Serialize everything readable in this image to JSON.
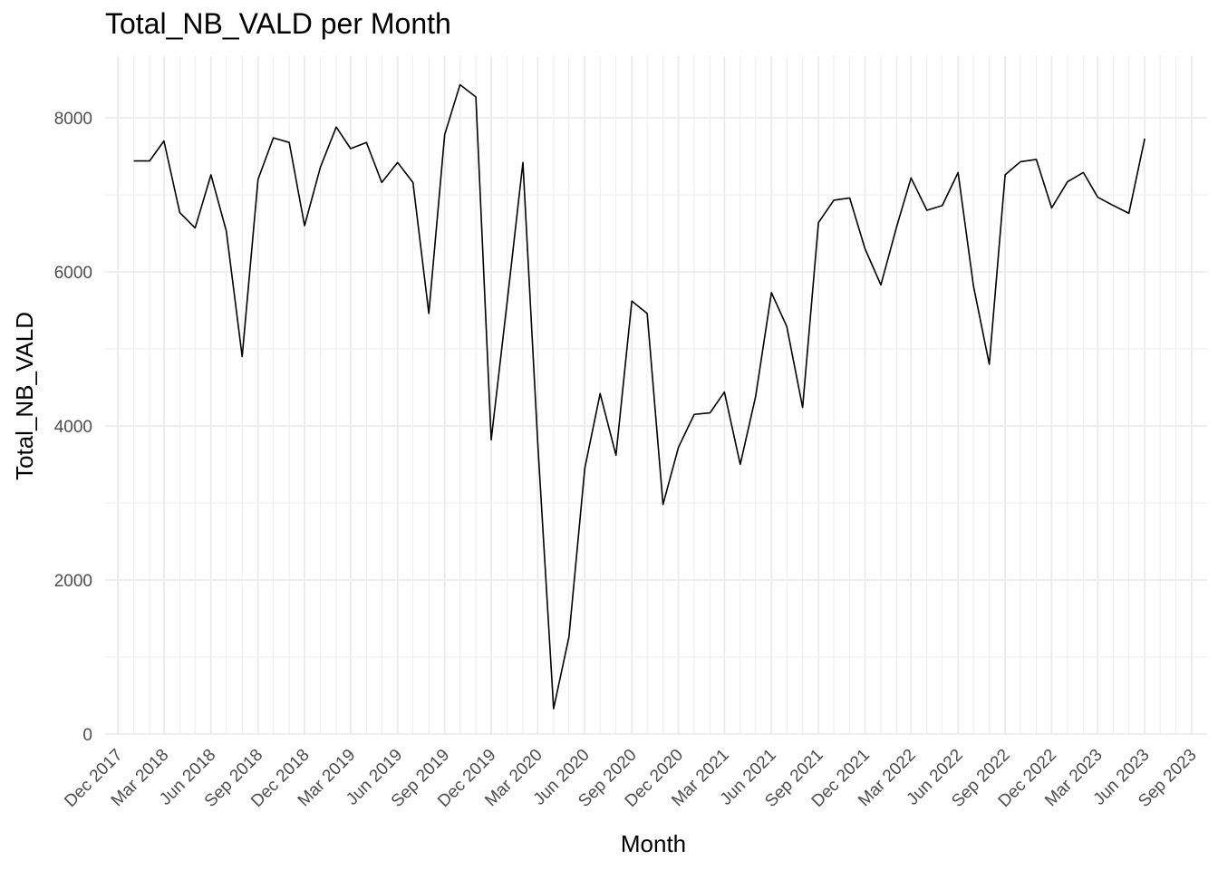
{
  "chart_data": {
    "type": "line",
    "title": "Total_NB_VALD per Month",
    "xlabel": "Month",
    "ylabel": "Total_NB_VALD",
    "ylim": [
      0,
      8800
    ],
    "xlim": [
      "2017-11-06",
      "2023-10-01"
    ],
    "y_ticks": [
      0,
      2000,
      4000,
      6000,
      8000
    ],
    "x_ticks": [
      "2017-12-01",
      "2018-03-01",
      "2018-06-01",
      "2018-09-01",
      "2018-12-01",
      "2019-03-01",
      "2019-06-01",
      "2019-09-01",
      "2019-12-01",
      "2020-03-01",
      "2020-06-01",
      "2020-09-01",
      "2020-12-01",
      "2021-03-01",
      "2021-06-01",
      "2021-09-01",
      "2021-12-01",
      "2022-03-01",
      "2022-06-01",
      "2022-09-01",
      "2022-12-01",
      "2023-03-01",
      "2023-06-01",
      "2023-09-01"
    ],
    "x_tick_labels": [
      "Dec 2017",
      "Mar 2018",
      "Jun 2018",
      "Sep 2018",
      "Dec 2018",
      "Mar 2019",
      "Jun 2019",
      "Sep 2019",
      "Dec 2019",
      "Mar 2020",
      "Jun 2020",
      "Sep 2020",
      "Dec 2020",
      "Mar 2021",
      "Jun 2021",
      "Sep 2021",
      "Dec 2021",
      "Mar 2022",
      "Jun 2022",
      "Sep 2022",
      "Dec 2022",
      "Mar 2023",
      "Jun 2023",
      "Sep 2023"
    ],
    "grid": true,
    "line_color": "#000000",
    "grid_color": "#ebebeb",
    "x": [
      "2018-01-01",
      "2018-02-01",
      "2018-03-01",
      "2018-04-01",
      "2018-05-01",
      "2018-06-01",
      "2018-07-01",
      "2018-08-01",
      "2018-09-01",
      "2018-10-01",
      "2018-11-01",
      "2018-12-01",
      "2019-01-01",
      "2019-02-01",
      "2019-03-01",
      "2019-04-01",
      "2019-05-01",
      "2019-06-01",
      "2019-07-01",
      "2019-08-01",
      "2019-09-01",
      "2019-10-01",
      "2019-11-01",
      "2019-12-01",
      "2020-01-01",
      "2020-02-01",
      "2020-03-01",
      "2020-04-01",
      "2020-05-01",
      "2020-06-01",
      "2020-07-01",
      "2020-08-01",
      "2020-09-01",
      "2020-10-01",
      "2020-11-01",
      "2020-12-01",
      "2021-01-01",
      "2021-02-01",
      "2021-03-01",
      "2021-04-01",
      "2021-05-01",
      "2021-06-01",
      "2021-07-01",
      "2021-08-01",
      "2021-09-01",
      "2021-10-01",
      "2021-11-01",
      "2021-12-01",
      "2022-01-01",
      "2022-02-01",
      "2022-03-01",
      "2022-04-01",
      "2022-05-01",
      "2022-06-01",
      "2022-07-01",
      "2022-08-01",
      "2022-09-01",
      "2022-10-01",
      "2022-11-01",
      "2022-12-01",
      "2023-01-01",
      "2023-02-01",
      "2023-03-01",
      "2023-04-01",
      "2023-05-01",
      "2023-06-01"
    ],
    "series": [
      {
        "values": [
          7440,
          7440,
          7700,
          6770,
          6570,
          7260,
          6530,
          4900,
          7200,
          7740,
          7680,
          6600,
          7360,
          7880,
          7600,
          7680,
          7160,
          7420,
          7160,
          5460,
          7780,
          8430,
          8270,
          3820,
          5600,
          7420,
          3780,
          330,
          1260,
          3450,
          4420,
          3620,
          5620,
          5460,
          2980,
          3720,
          4150,
          4170,
          4440,
          3500,
          4380,
          5730,
          5290,
          4240,
          6640,
          6930,
          6960,
          6300,
          5830,
          6590,
          7220,
          6800,
          6860,
          7290,
          5820,
          4800,
          7260,
          7430,
          7460,
          6830,
          7170,
          7290,
          6970,
          6860,
          6760,
          7730
        ]
      }
    ]
  }
}
